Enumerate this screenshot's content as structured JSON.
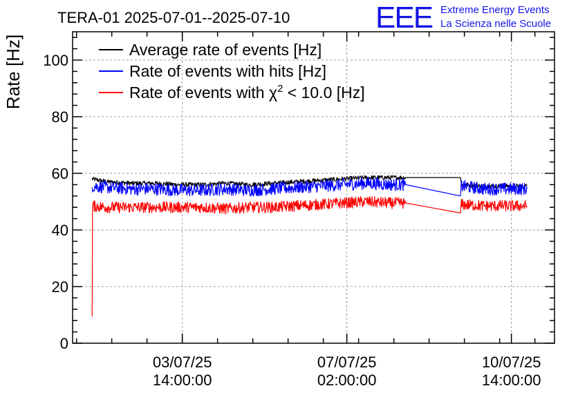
{
  "chart_data": {
    "type": "line",
    "title": "TERA-01 2025-07-01--2025-07-10",
    "ylabel": "Rate [Hz]",
    "xlabel": "",
    "ylim": [
      0,
      110
    ],
    "xlim": [
      "2025-07-01 06:00:00",
      "2025-07-11 12:00:00"
    ],
    "yticks": [
      0,
      20,
      40,
      60,
      80,
      100
    ],
    "ytick_labels": [
      "0",
      "20",
      "40",
      "60",
      "80",
      "100"
    ],
    "xticks": [
      {
        "at": "2025-07-03 14:00:00",
        "line1": "03/07/25",
        "line2": "14:00:00"
      },
      {
        "at": "2025-07-07 02:00:00",
        "line1": "07/07/25",
        "line2": "02:00:00"
      },
      {
        "at": "2025-07-10 14:00:00",
        "line1": "10/07/25",
        "line2": "14:00:00"
      }
    ],
    "grid": true,
    "legend_position": "top-left",
    "legend": {
      "avg_label": "Average rate of events [Hz]",
      "hits_label": "Rate of events with hits [Hz]",
      "chi_prefix": "Rate of events with χ",
      "chi_sup": "2",
      "chi_suffix": " < 10.0 [Hz]"
    },
    "series": [
      {
        "name": "Average rate of events [Hz]",
        "color": "#000000",
        "x": [
          "2025-07-01 16:00:00",
          "2025-07-02 00:00:00",
          "2025-07-02 12:00:00",
          "2025-07-03 00:00:00",
          "2025-07-03 12:00:00",
          "2025-07-04 00:00:00",
          "2025-07-04 12:00:00",
          "2025-07-05 00:00:00",
          "2025-07-05 12:00:00",
          "2025-07-06 00:00:00",
          "2025-07-06 12:00:00",
          "2025-07-07 00:00:00",
          "2025-07-07 12:00:00",
          "2025-07-08 00:00:00",
          "2025-07-08 08:00:00",
          "2025-07-09 12:00:00",
          "2025-07-09 12:30:00",
          "2025-07-10 00:00:00",
          "2025-07-10 12:00:00",
          "2025-07-10 22:00:00"
        ],
        "y": [
          58,
          57,
          56.5,
          56.5,
          56,
          56,
          56.5,
          56,
          56.5,
          57,
          57.5,
          58,
          58.5,
          58.5,
          58.5,
          58.5,
          56,
          55.5,
          55.5,
          55.5
        ],
        "noise": 0.8
      },
      {
        "name": "Rate of events with hits [Hz]",
        "color": "#0000ff",
        "x": [
          "2025-07-01 16:00:00",
          "2025-07-02 00:00:00",
          "2025-07-02 12:00:00",
          "2025-07-03 00:00:00",
          "2025-07-03 12:00:00",
          "2025-07-04 00:00:00",
          "2025-07-04 12:00:00",
          "2025-07-05 00:00:00",
          "2025-07-05 12:00:00",
          "2025-07-06 00:00:00",
          "2025-07-06 12:00:00",
          "2025-07-07 00:00:00",
          "2025-07-07 12:00:00",
          "2025-07-08 00:00:00",
          "2025-07-08 08:00:00",
          "2025-07-09 12:00:00",
          "2025-07-09 12:30:00",
          "2025-07-10 00:00:00",
          "2025-07-10 12:00:00",
          "2025-07-10 22:00:00"
        ],
        "y": [
          55.5,
          55,
          54.5,
          54.5,
          54,
          54,
          54.5,
          54,
          54.5,
          55,
          55.5,
          56,
          56.5,
          56,
          56,
          52,
          55.5,
          54.5,
          54.5,
          54.5
        ],
        "noise": 2.2
      },
      {
        "name": "Rate of events with χ² < 10.0 [Hz]",
        "color": "#ff0000",
        "x": [
          "2025-07-01 16:00:00",
          "2025-07-01 16:10:00",
          "2025-07-02 00:00:00",
          "2025-07-02 12:00:00",
          "2025-07-03 00:00:00",
          "2025-07-03 12:00:00",
          "2025-07-04 00:00:00",
          "2025-07-04 12:00:00",
          "2025-07-05 00:00:00",
          "2025-07-05 12:00:00",
          "2025-07-06 00:00:00",
          "2025-07-06 12:00:00",
          "2025-07-07 00:00:00",
          "2025-07-07 12:00:00",
          "2025-07-08 00:00:00",
          "2025-07-08 08:00:00",
          "2025-07-09 12:00:00",
          "2025-07-09 12:30:00",
          "2025-07-10 00:00:00",
          "2025-07-10 12:00:00",
          "2025-07-10 22:00:00"
        ],
        "y": [
          9.5,
          48.5,
          48,
          48,
          48,
          48,
          48,
          47.5,
          48,
          48,
          48.5,
          49,
          49.5,
          50,
          49.5,
          49.5,
          46,
          49,
          48.5,
          48.5,
          48.5
        ],
        "noise": 2.0
      }
    ]
  },
  "logo": {
    "mark": "EEE",
    "line1": "Extreme Energy Events",
    "line2": "La Scienza nelle Scuole",
    "color": "#1414e6"
  }
}
